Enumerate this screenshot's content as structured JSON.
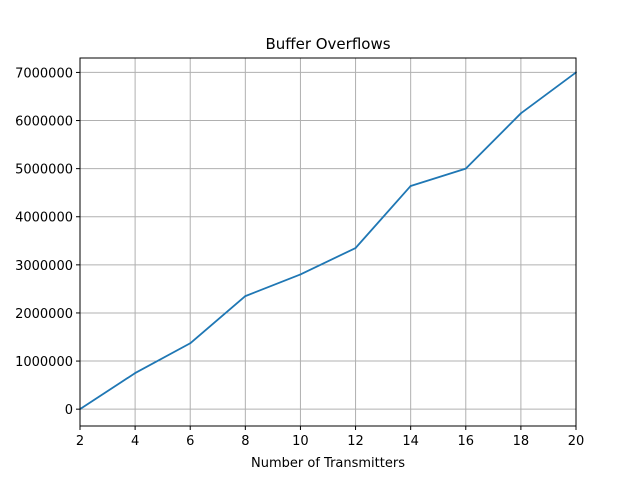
{
  "chart_data": {
    "type": "line",
    "title": "Buffer Overflows",
    "xlabel": "Number of Transmitters",
    "ylabel": "",
    "xlim": [
      2,
      20
    ],
    "ylim": [
      -350000,
      7300000
    ],
    "grid": true,
    "legend": "none",
    "x_ticks": [
      2,
      4,
      6,
      8,
      10,
      12,
      14,
      16,
      18,
      20
    ],
    "y_ticks": [
      0,
      1000000,
      2000000,
      3000000,
      4000000,
      5000000,
      6000000,
      7000000
    ],
    "x_tick_labels": [
      "2",
      "4",
      "6",
      "8",
      "10",
      "12",
      "14",
      "16",
      "18",
      "20"
    ],
    "y_tick_labels": [
      "0",
      "1000000",
      "2000000",
      "3000000",
      "4000000",
      "5000000",
      "6000000",
      "7000000"
    ],
    "series": [
      {
        "color": "#1f77b4",
        "x": [
          2,
          4,
          6,
          8,
          10,
          12,
          14,
          16,
          18,
          20
        ],
        "y": [
          0,
          750000,
          1370000,
          2350000,
          2800000,
          3350000,
          4640000,
          5000000,
          6150000,
          7000000
        ]
      }
    ]
  }
}
